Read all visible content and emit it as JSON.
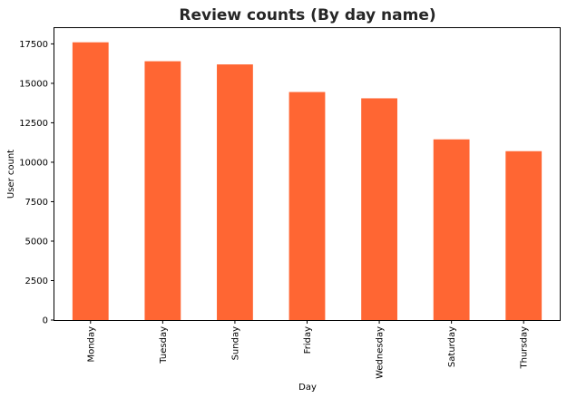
{
  "chart_data": {
    "type": "bar",
    "title": "Review counts (By day name)",
    "xlabel": "Day",
    "ylabel": "User count",
    "categories": [
      "Monday",
      "Tuesday",
      "Sunday",
      "Friday",
      "Wednesday",
      "Saturday",
      "Thursday"
    ],
    "values": [
      17600,
      16400,
      16200,
      14450,
      14050,
      11450,
      10700
    ],
    "ylim": [
      0,
      18500
    ],
    "yticks": [
      0,
      2500,
      5000,
      7500,
      10000,
      12500,
      15000,
      17500
    ],
    "ytick_labels": [
      "0",
      "2500",
      "5000",
      "7500",
      "10000",
      "12500",
      "15000",
      "17500"
    ],
    "bar_color": "#ff6633",
    "grid": false,
    "legend": "none"
  }
}
